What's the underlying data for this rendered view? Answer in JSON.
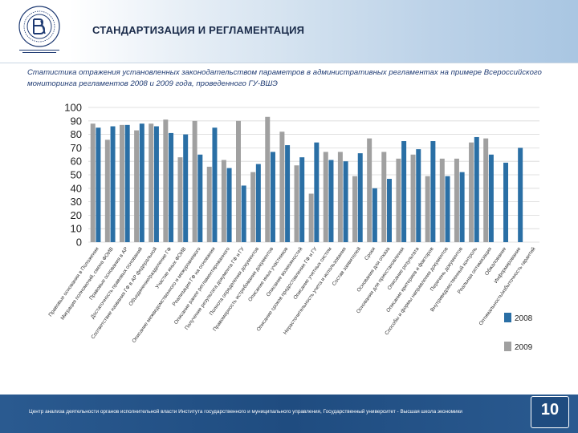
{
  "header": {
    "title": "СТАНДАРТИЗАЦИЯ И РЕГЛАМЕНТАЦИЯ"
  },
  "subtitle": "Статистика отражения установленных законодательством параметров в административных регламентах на примере Всероссийского мониторинга регламентов 2008 и 2009 года, проведенного ГУ-ВШЭ",
  "footer": {
    "text": "Центр анализа деятельности органов исполнительной власти Института государственного и муниципального управления, Государственный университет - Высшая школа экономики",
    "page_number": "10"
  },
  "colors": {
    "series_2008": "#2a6fa5",
    "series_2009": "#a0a0a0",
    "header_title": "#1a2b4a",
    "subtitle": "#1f3b73",
    "footer": "#1f4c80"
  },
  "chart_data": {
    "type": "bar",
    "ylim": [
      0,
      100
    ],
    "yticks": [
      0,
      10,
      20,
      30,
      40,
      50,
      60,
      70,
      80,
      90,
      100
    ],
    "grid": true,
    "legend_position": "bottom-right",
    "categories": [
      "Правовые основания в Положении",
      "Миграция полномочий, смена ФОИВ",
      "Правовые основания в АР",
      "Достаточность правовых оснований",
      "Соответствие названия ГФ в АР федеральной",
      "Объединение/разделение ГФ",
      "Участие иных ФОИВ",
      "Описание межведомственного и межуровневого",
      "Реализация ГФ на основании",
      "Описание ранее регламентированного",
      "Получение результата документа ГФ и ГУ",
      "Полнота определения документов",
      "Правомерность истребования документов",
      "Описание иных участников",
      "Описание возможностей",
      "Описание сроков предоставления ГФ и ГУ",
      "Описание учетных систем",
      "Нерасточительность учета и использования",
      "Состав заявителей",
      "Сроки",
      "Основания для отказа",
      "Основания для приостановления",
      "Описание результата",
      "Описание критериев и факторов",
      "Способы и формы направления документов",
      "Перечень документов",
      "Внутриведомственный контроль",
      "Реальная оптимизация",
      "Обжалование",
      "Информирование",
      "Оптимальность/избыточность гарантий"
    ],
    "series": [
      {
        "name": "2008",
        "values": [
          85,
          86,
          87,
          88,
          86,
          81,
          80,
          65,
          85,
          55,
          42,
          58,
          67,
          72,
          63,
          74,
          61,
          60,
          66,
          40,
          47,
          75,
          69,
          75,
          49,
          52,
          78,
          65,
          59,
          70,
          null
        ]
      },
      {
        "name": "2009",
        "values": [
          88,
          76,
          87,
          83,
          88,
          91,
          63,
          90,
          56,
          61,
          90,
          52,
          93,
          82,
          57,
          36,
          67,
          67,
          49,
          77,
          67,
          62,
          65,
          49,
          62,
          62,
          74,
          77,
          null,
          null,
          null
        ]
      }
    ]
  }
}
